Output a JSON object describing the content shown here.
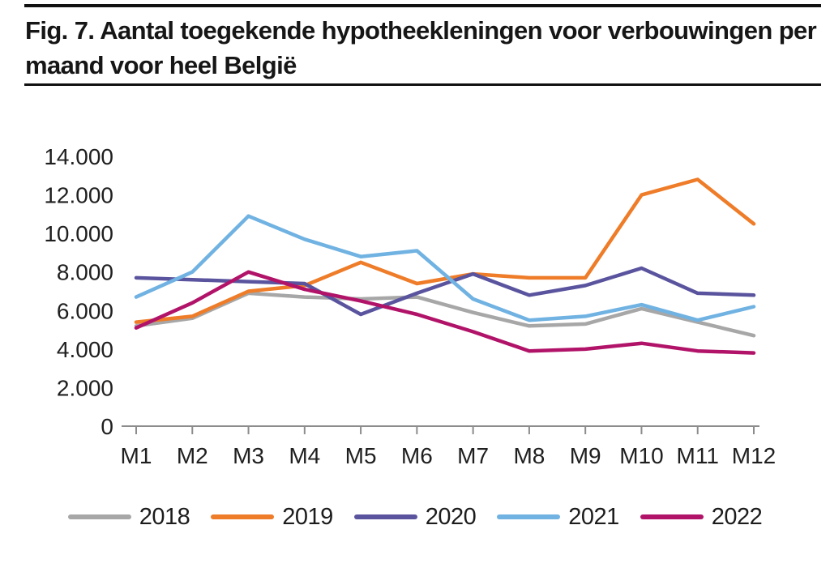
{
  "title": {
    "line1": "Fig. 7. Aantal toegekende hypotheekleningen voor verbouwingen per",
    "line2": "maand voor heel België"
  },
  "axis_colors": {
    "axis_line": "#8c8c8c",
    "tick_mark": "#8c8c8c",
    "label_text": "#1f1f1f"
  },
  "chart_data": {
    "type": "line",
    "title": "Fig. 7. Aantal toegekende hypotheekleningen voor verbouwingen per maand voor heel België",
    "categories": [
      "M1",
      "M2",
      "M3",
      "M4",
      "M5",
      "M6",
      "M7",
      "M8",
      "M9",
      "M10",
      "M11",
      "M12"
    ],
    "series": [
      {
        "name": "2018",
        "color": "#a7a7a7",
        "values": [
          5200,
          5600,
          6900,
          6700,
          6600,
          6700,
          5900,
          5200,
          5300,
          6100,
          5400,
          4700
        ]
      },
      {
        "name": "2019",
        "color": "#ee7c28",
        "values": [
          5400,
          5700,
          7000,
          7300,
          8500,
          7400,
          7900,
          7700,
          7700,
          12000,
          12800,
          10500
        ]
      },
      {
        "name": "2020",
        "color": "#5a549e",
        "values": [
          7700,
          7600,
          7500,
          7400,
          5800,
          6900,
          7900,
          6800,
          7300,
          8200,
          6900,
          6800
        ]
      },
      {
        "name": "2021",
        "color": "#70b2e2",
        "values": [
          6700,
          8000,
          10900,
          9700,
          8800,
          9100,
          6600,
          5500,
          5700,
          6300,
          5500,
          6200
        ]
      },
      {
        "name": "2022",
        "color": "#b11369",
        "values": [
          5100,
          6400,
          8000,
          7100,
          6500,
          5800,
          4900,
          3900,
          4000,
          4300,
          3900,
          3800
        ]
      }
    ],
    "y_ticks": [
      {
        "value": 14000,
        "label": "14.000"
      },
      {
        "value": 12000,
        "label": "12.000"
      },
      {
        "value": 10000,
        "label": "10.000"
      },
      {
        "value": 8000,
        "label": "8.000"
      },
      {
        "value": 6000,
        "label": "6.000"
      },
      {
        "value": 4000,
        "label": "4.000"
      },
      {
        "value": 2000,
        "label": "2.000"
      },
      {
        "value": 0,
        "label": "0"
      }
    ],
    "ylim": [
      0,
      14000
    ],
    "xlabel": "",
    "ylabel": "",
    "grid": false,
    "legend_position": "bottom"
  }
}
